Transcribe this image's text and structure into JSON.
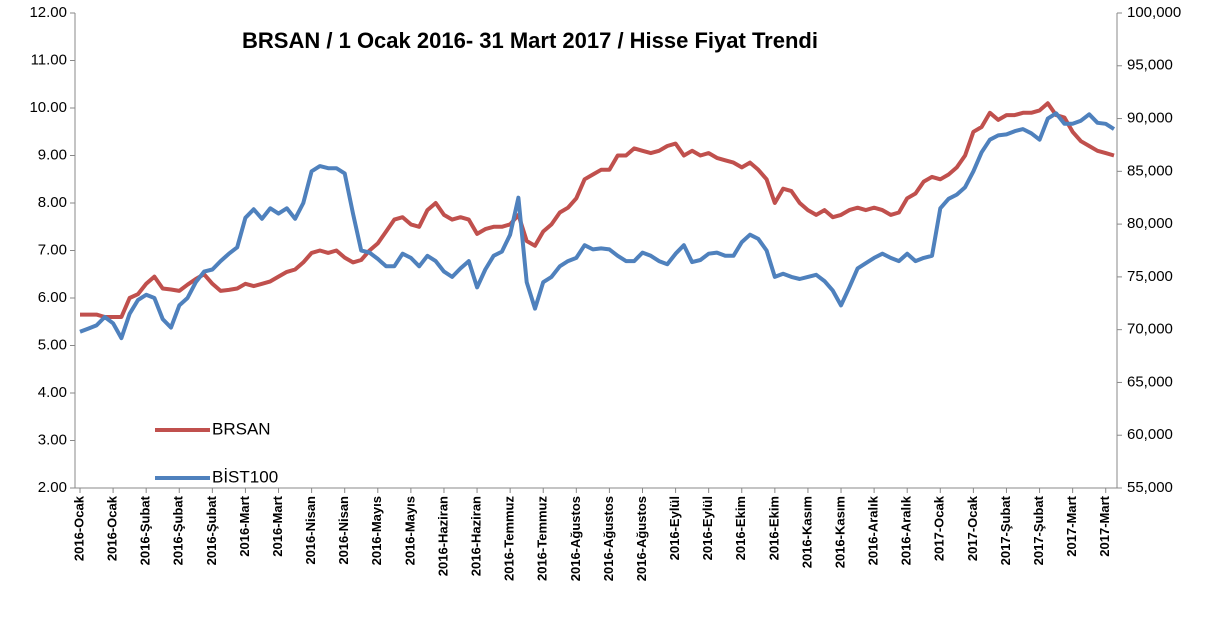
{
  "chart_data": {
    "type": "line",
    "title": "BRSAN / 1 Ocak 2016-  31 Mart 2017 / Hisse Fiyat Trendi",
    "categories": [
      "2016-Ocak",
      null,
      null,
      null,
      "2016-Ocak",
      null,
      null,
      null,
      "2016-Şubat",
      null,
      null,
      null,
      "2016-Şubat",
      null,
      null,
      null,
      "2016-Şubat",
      null,
      null,
      null,
      "2016-Mart",
      null,
      null,
      null,
      "2016-Mart",
      null,
      null,
      null,
      "2016-Nisan",
      null,
      null,
      null,
      "2016-Nisan",
      null,
      null,
      null,
      "2016-Mayıs",
      null,
      null,
      null,
      "2016-Mayıs",
      null,
      null,
      null,
      "2016-Haziran",
      null,
      null,
      null,
      "2016-Haziran",
      null,
      null,
      null,
      "2016-Temmuz",
      null,
      null,
      null,
      "2016-Temmuz",
      null,
      null,
      null,
      "2016-Ağustos",
      null,
      null,
      null,
      "2016-Ağustos",
      null,
      null,
      null,
      "2016-Ağustos",
      null,
      null,
      null,
      "2016-Eylül",
      null,
      null,
      null,
      "2016-Eylül",
      null,
      null,
      null,
      "2016-Ekim",
      null,
      null,
      null,
      "2016-Ekim",
      null,
      null,
      null,
      "2016-Kasım",
      null,
      null,
      null,
      "2016-Kasım",
      null,
      null,
      null,
      "2016-Aralık",
      null,
      null,
      null,
      "2016-Aralık",
      null,
      null,
      null,
      "2017-Ocak",
      null,
      null,
      null,
      "2017-Ocak",
      null,
      null,
      null,
      "2017-Şubat",
      null,
      null,
      null,
      "2017-Şubat",
      null,
      null,
      null,
      "2017-Mart",
      null,
      null,
      null,
      "2017-Mart",
      null
    ],
    "series": [
      {
        "name": "BRSAN",
        "color": "#c0504d",
        "axis": "y",
        "values": [
          5.65,
          5.65,
          5.65,
          5.6,
          5.6,
          5.6,
          6.0,
          6.08,
          6.3,
          6.45,
          6.2,
          6.18,
          6.15,
          6.28,
          6.4,
          6.5,
          6.3,
          6.15,
          6.17,
          6.2,
          6.3,
          6.25,
          6.3,
          6.35,
          6.45,
          6.55,
          6.6,
          6.75,
          6.95,
          7.0,
          6.95,
          7.0,
          6.85,
          6.75,
          6.8,
          7.0,
          7.15,
          7.4,
          7.65,
          7.7,
          7.55,
          7.5,
          7.85,
          8.0,
          7.75,
          7.65,
          7.7,
          7.65,
          7.35,
          7.45,
          7.5,
          7.5,
          7.55,
          7.75,
          7.2,
          7.1,
          7.4,
          7.55,
          7.8,
          7.9,
          8.1,
          8.5,
          8.6,
          8.7,
          8.7,
          9.0,
          9.0,
          9.15,
          9.1,
          9.05,
          9.1,
          9.2,
          9.25,
          9.0,
          9.1,
          9.0,
          9.05,
          8.95,
          8.9,
          8.85,
          8.75,
          8.85,
          8.7,
          8.5,
          8.0,
          8.3,
          8.25,
          8.0,
          7.85,
          7.75,
          7.85,
          7.7,
          7.75,
          7.85,
          7.9,
          7.85,
          7.9,
          7.85,
          7.75,
          7.8,
          8.1,
          8.2,
          8.45,
          8.55,
          8.5,
          8.6,
          8.75,
          9.0,
          9.5,
          9.6,
          9.9,
          9.75,
          9.85,
          9.85,
          9.9,
          9.9,
          9.95,
          10.1,
          9.85,
          9.8,
          9.5,
          9.3,
          9.2,
          9.1,
          9.05,
          9.0
        ]
      },
      {
        "name": "BİST100",
        "color": "#4f81bd",
        "axis": "y2",
        "values": [
          69800,
          70100,
          70400,
          71200,
          70600,
          69200,
          71500,
          72800,
          73300,
          73000,
          71000,
          70200,
          72300,
          73000,
          74500,
          75500,
          75700,
          76500,
          77200,
          77800,
          80600,
          81400,
          80500,
          81500,
          81000,
          81500,
          80500,
          82000,
          85000,
          85500,
          85300,
          85300,
          84800,
          81000,
          77500,
          77300,
          76700,
          76000,
          76000,
          77200,
          76800,
          76000,
          77000,
          76500,
          75500,
          75000,
          75800,
          76500,
          74000,
          75700,
          77000,
          77400,
          79000,
          82500,
          74500,
          72000,
          74500,
          75000,
          76000,
          76500,
          76800,
          78000,
          77600,
          77700,
          77600,
          77000,
          76500,
          76500,
          77300,
          77000,
          76500,
          76200,
          77200,
          78000,
          76400,
          76600,
          77200,
          77300,
          77000,
          77000,
          78300,
          79000,
          78600,
          77500,
          75000,
          75300,
          75000,
          74800,
          75000,
          75200,
          74600,
          73700,
          72300,
          74000,
          75800,
          76300,
          76800,
          77200,
          76800,
          76500,
          77200,
          76500,
          76800,
          77000,
          81500,
          82400,
          82800,
          83500,
          85000,
          86800,
          88000,
          88400,
          88500,
          88800,
          89000,
          88600,
          88000,
          90000,
          90500,
          89500,
          89500,
          89800,
          90400,
          89600,
          89500,
          89000
        ]
      }
    ],
    "ylim": [
      2,
      12
    ],
    "yticks": [
      {
        "value": 2,
        "label": "2.00"
      },
      {
        "value": 3,
        "label": "3.00"
      },
      {
        "value": 4,
        "label": "4.00"
      },
      {
        "value": 5,
        "label": "5.00"
      },
      {
        "value": 6,
        "label": "6.00"
      },
      {
        "value": 7,
        "label": "7.00"
      },
      {
        "value": 8,
        "label": "8.00"
      },
      {
        "value": 9,
        "label": "9.00"
      },
      {
        "value": 10,
        "label": "10.00"
      },
      {
        "value": 11,
        "label": "11.00"
      },
      {
        "value": 12,
        "label": "12.00"
      }
    ],
    "y2lim": [
      55000,
      100000
    ],
    "y2ticks": [
      {
        "value": 55000,
        "label": "55,000"
      },
      {
        "value": 60000,
        "label": "60,000"
      },
      {
        "value": 65000,
        "label": "65,000"
      },
      {
        "value": 70000,
        "label": "70,000"
      },
      {
        "value": 75000,
        "label": "75,000"
      },
      {
        "value": 80000,
        "label": "80,000"
      },
      {
        "value": 85000,
        "label": "85,000"
      },
      {
        "value": 90000,
        "label": "90,000"
      },
      {
        "value": 95000,
        "label": "95,000"
      },
      {
        "value": 100000,
        "label": "100,000"
      }
    ],
    "grid": false,
    "legend": "lower-left"
  }
}
